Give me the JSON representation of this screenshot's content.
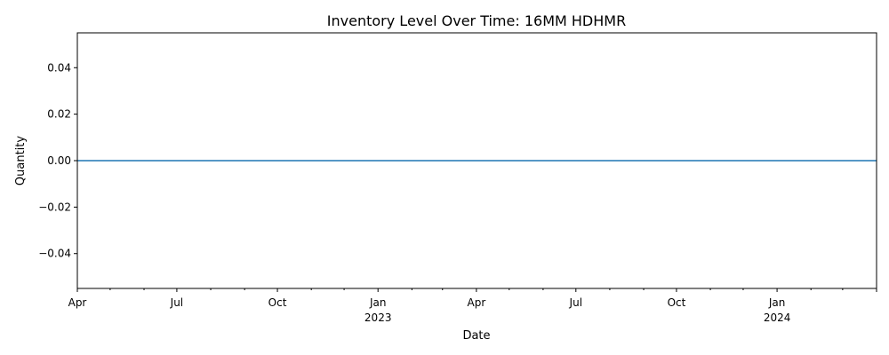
{
  "chart_data": {
    "type": "line",
    "title": "Inventory Level Over Time: 16MM HDHMR",
    "xlabel": "Date",
    "ylabel": "Quantity",
    "x_range": [
      "2022-04-01",
      "2024-04-01"
    ],
    "ylim": [
      -0.055,
      0.055
    ],
    "yticks": [
      -0.04,
      -0.02,
      0.0,
      0.02,
      0.04
    ],
    "ytick_labels": [
      "−0.04",
      "−0.02",
      "0.00",
      "0.02",
      "0.04"
    ],
    "xticks_major": [
      {
        "date": "2022-04-01",
        "label": "Apr",
        "year": ""
      },
      {
        "date": "2022-07-01",
        "label": "Jul",
        "year": ""
      },
      {
        "date": "2022-10-01",
        "label": "Oct",
        "year": ""
      },
      {
        "date": "2023-01-01",
        "label": "Jan",
        "year": "2023"
      },
      {
        "date": "2023-04-01",
        "label": "Apr",
        "year": ""
      },
      {
        "date": "2023-07-01",
        "label": "Jul",
        "year": ""
      },
      {
        "date": "2023-10-01",
        "label": "Oct",
        "year": ""
      },
      {
        "date": "2024-01-01",
        "label": "Jan",
        "year": "2024"
      },
      {
        "date": "2024-04-01",
        "label": "",
        "year": ""
      }
    ],
    "series": [
      {
        "color": "#1f77b4",
        "points": [
          {
            "x": "2022-04-01",
            "y": 0
          },
          {
            "x": "2024-04-01",
            "y": 0
          }
        ]
      }
    ],
    "grid": false,
    "legend": "none"
  }
}
